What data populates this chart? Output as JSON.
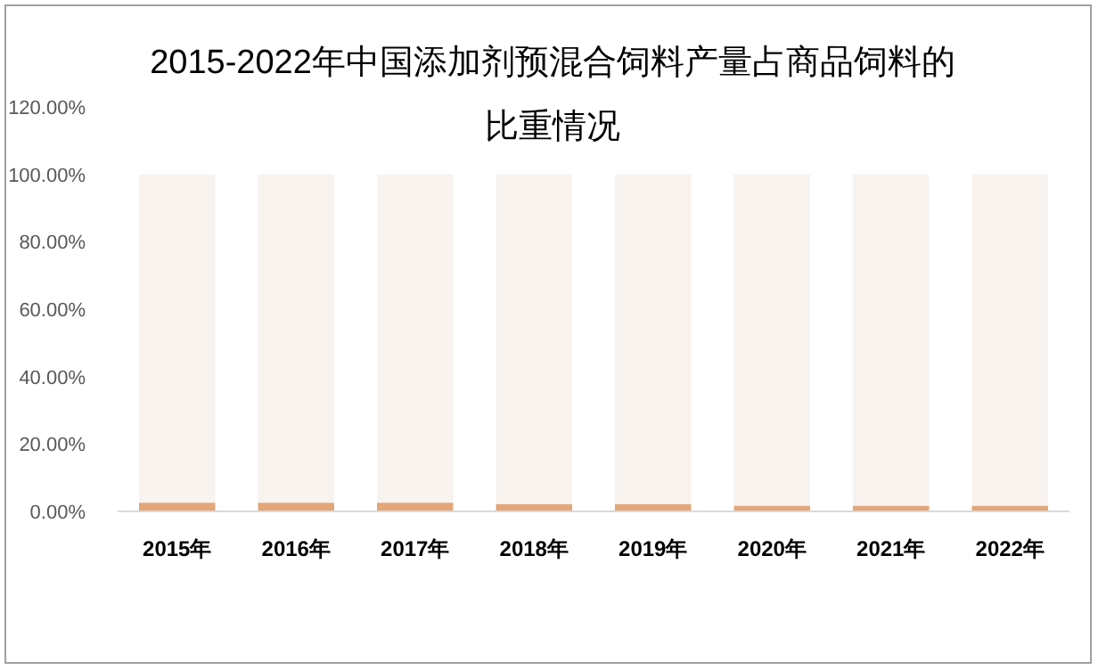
{
  "chart_data": {
    "type": "bar",
    "title": "2015-2022年中国添加剂预混合饲料产量占商品饲料的比重情况",
    "categories": [
      "2015年",
      "2016年",
      "2017年",
      "2018年",
      "2019年",
      "2020年",
      "2021年",
      "2022年"
    ],
    "series": [
      {
        "color": "#e3a677",
        "values": [
          2.6,
          2.6,
          2.6,
          2.2,
          2.2,
          1.7,
          1.7,
          1.7
        ]
      },
      {
        "color": "#f8f3ef",
        "values": [
          97.4,
          97.4,
          97.4,
          97.8,
          97.8,
          98.3,
          98.3,
          98.3
        ]
      }
    ],
    "stacked": true,
    "ylim": [
      0,
      120
    ],
    "yticks": [
      {
        "value": 0,
        "label": "0.00%"
      },
      {
        "value": 20,
        "label": "20.00%"
      },
      {
        "value": 40,
        "label": "40.00%"
      },
      {
        "value": 60,
        "label": "60.00%"
      },
      {
        "value": 80,
        "label": "80.00%"
      },
      {
        "value": 100,
        "label": "100.00%"
      },
      {
        "value": 120,
        "label": "120.00%"
      }
    ],
    "grid": false
  }
}
